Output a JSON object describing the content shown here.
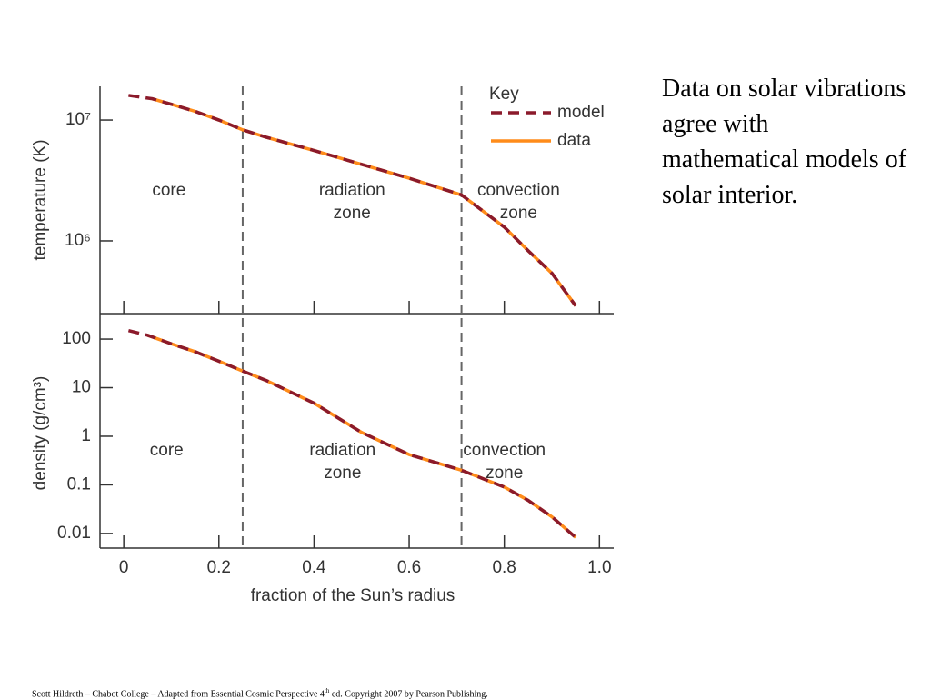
{
  "chart_data": [
    {
      "type": "line",
      "scale": "log",
      "ylabel": "temperature (K)",
      "xlim": [
        -0.05,
        1.03
      ],
      "ylim": [
        250000,
        19000000
      ],
      "yticks": [
        {
          "value": 10000000,
          "label": "10⁷"
        },
        {
          "value": 1000000,
          "label": "10⁶"
        }
      ],
      "zone_boundaries": [
        0.25,
        0.71
      ],
      "annotations": [
        [
          "core"
        ],
        [
          "radiation",
          "zone"
        ],
        [
          "convection",
          "zone"
        ]
      ],
      "legend_title": "Key",
      "legend": "top-right",
      "x": [
        0.01,
        0.06,
        0.1,
        0.15,
        0.2,
        0.25,
        0.3,
        0.4,
        0.5,
        0.6,
        0.71,
        0.8,
        0.85,
        0.9,
        0.95
      ],
      "series": [
        {
          "name": "data",
          "color": "#ff8c1a",
          "style": "solid",
          "values": [
            null,
            15000000,
            13500000,
            11800000,
            10000000,
            8300000,
            7200000,
            5600000,
            4300000,
            3300000,
            2400000,
            1300000,
            830000,
            540000,
            290000
          ]
        },
        {
          "name": "model",
          "color": "#8b1a2b",
          "style": "dashed",
          "values": [
            16000000,
            15000000,
            13500000,
            11800000,
            10000000,
            8300000,
            7200000,
            5600000,
            4300000,
            3300000,
            2400000,
            1300000,
            830000,
            540000,
            290000
          ]
        }
      ]
    },
    {
      "type": "line",
      "scale": "log",
      "ylabel": "density (g/cm³)",
      "xlabel": "fraction of the Sun’s radius",
      "xlim": [
        -0.05,
        1.03
      ],
      "ylim": [
        0.005,
        270
      ],
      "xticks": [
        0,
        0.2,
        0.4,
        0.6,
        0.8,
        {
          "value": 1,
          "label": "1.0"
        }
      ],
      "yticks": [
        100,
        10,
        1,
        0.1,
        0.01
      ],
      "zone_boundaries": [
        0.25,
        0.71
      ],
      "annotations": [
        [
          "core"
        ],
        [
          "radiation",
          "zone"
        ],
        [
          "convection",
          "zone"
        ]
      ],
      "x": [
        0.01,
        0.05,
        0.1,
        0.15,
        0.2,
        0.25,
        0.3,
        0.4,
        0.5,
        0.6,
        0.71,
        0.8,
        0.85,
        0.9,
        0.95
      ],
      "series": [
        {
          "name": "data",
          "color": "#ff8c1a",
          "style": "solid",
          "values": [
            null,
            120,
            80,
            55,
            35,
            22,
            14,
            4.8,
            1.2,
            0.42,
            0.2,
            0.09,
            0.048,
            0.022,
            0.0083
          ]
        },
        {
          "name": "model",
          "color": "#8b1a2b",
          "style": "dashed",
          "values": [
            150,
            120,
            80,
            55,
            35,
            22,
            14,
            4.8,
            1.2,
            0.42,
            0.2,
            0.09,
            0.048,
            0.022,
            0.0083
          ]
        }
      ]
    }
  ],
  "caption": "Data on solar vibrations agree with mathematical models of solar interior.",
  "footer": {
    "before": "Scott Hildreth – Chabot College – Adapted from Essential Cosmic Perspective 4",
    "sup": "th",
    "after": " ed. Copyright 2007 by Pearson Publishing."
  }
}
